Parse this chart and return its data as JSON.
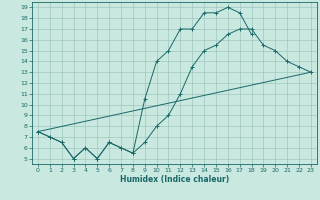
{
  "background_color": "#c8e8e0",
  "grid_color": "#a0c8c0",
  "line_color": "#1a6868",
  "xlabel": "Humidex (Indice chaleur)",
  "xlim": [
    -0.5,
    23.5
  ],
  "ylim": [
    4.5,
    19.5
  ],
  "xticks": [
    0,
    1,
    2,
    3,
    4,
    5,
    6,
    7,
    8,
    9,
    10,
    11,
    12,
    13,
    14,
    15,
    16,
    17,
    18,
    19,
    20,
    21,
    22,
    23
  ],
  "yticks": [
    5,
    6,
    7,
    8,
    9,
    10,
    11,
    12,
    13,
    14,
    15,
    16,
    17,
    18,
    19
  ],
  "line1_x": [
    0,
    1,
    2,
    3,
    4,
    5,
    6,
    7,
    8,
    9,
    10,
    11,
    12,
    13,
    14,
    15,
    16,
    17,
    18,
    19,
    20,
    21,
    22,
    23
  ],
  "line1_y": [
    7.5,
    7.0,
    6.5,
    5.0,
    6.0,
    5.0,
    6.5,
    6.0,
    5.5,
    6.5,
    8.0,
    9.0,
    11.0,
    13.5,
    15.0,
    15.5,
    16.5,
    17.0,
    17.0,
    15.5,
    15.0,
    14.0,
    13.5,
    13.0
  ],
  "line2_x": [
    0,
    1,
    2,
    3,
    4,
    5,
    6,
    7,
    8,
    9,
    10,
    11,
    12,
    13,
    14,
    15,
    16,
    17,
    18
  ],
  "line2_y": [
    7.5,
    7.0,
    6.5,
    5.0,
    6.0,
    5.0,
    6.5,
    6.0,
    5.5,
    10.5,
    14.0,
    15.0,
    17.0,
    17.0,
    18.5,
    18.5,
    19.0,
    18.5,
    16.5
  ],
  "line3_x": [
    0,
    23
  ],
  "line3_y": [
    7.5,
    13.0
  ]
}
